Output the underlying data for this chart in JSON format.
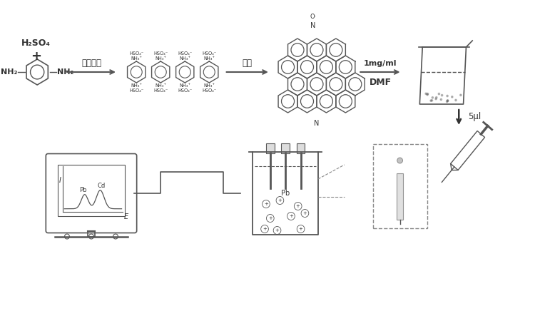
{
  "bg_color": "#ffffff",
  "text_color": "#333333",
  "line_color": "#555555",
  "h2so4_text": "H₂SO₄",
  "plus_text": "+",
  "nh2_text": "NH₂",
  "neutralize_text": "中和反应",
  "carbonize_text": "碳化",
  "dmf_text": "DMF",
  "mgml_text": "1mg/ml",
  "fiveul_text": "5μl",
  "n_text": "N",
  "o_text": "O·",
  "pb_text": "Pb",
  "cd_text": "Cd",
  "i_text": "I",
  "e_text": "E",
  "hso4_label": "HSO₄⁻",
  "nh3p_label": "NH₃⁺"
}
